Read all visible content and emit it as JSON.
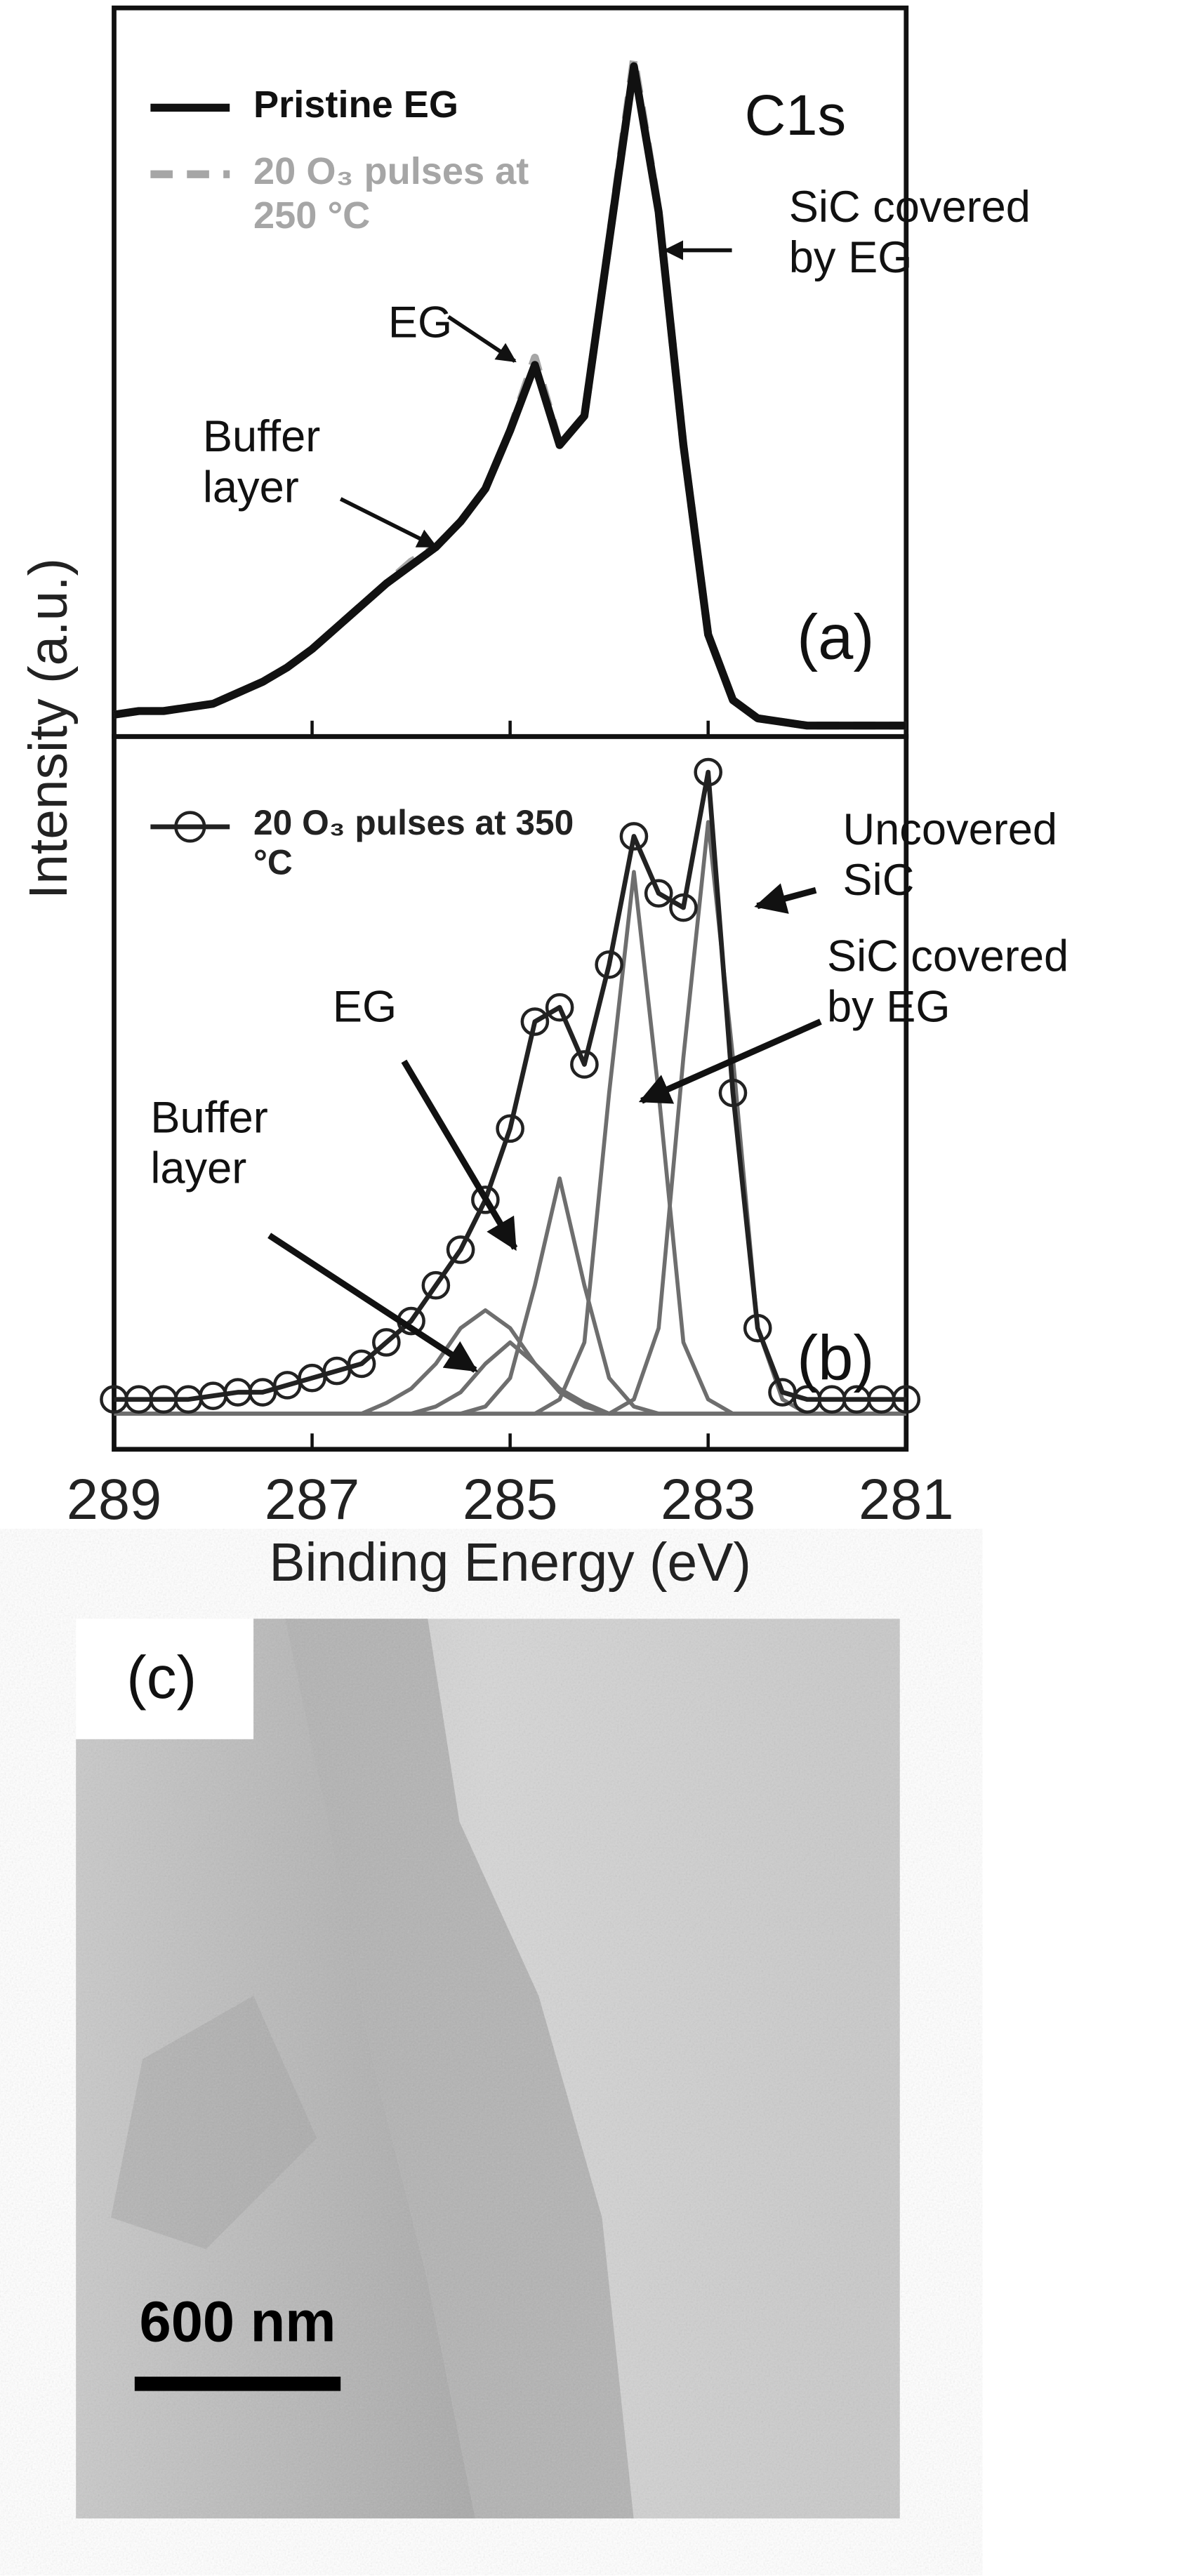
{
  "chart_data": [
    {
      "type": "line",
      "ylabel": "Intensity (a.u.)",
      "xlim": [
        289,
        281
      ],
      "ylim": [
        0,
        100
      ],
      "xticks": [
        289,
        287,
        285,
        283,
        281
      ],
      "xtick_labels": false,
      "x": [
        289,
        288.75,
        288.5,
        288.25,
        288,
        287.75,
        287.5,
        287.25,
        287,
        286.75,
        286.5,
        286.25,
        286,
        285.75,
        285.5,
        285.25,
        285,
        284.75,
        284.5,
        284.25,
        284,
        283.75,
        283.5,
        283.25,
        283,
        282.75,
        282.5,
        282.25,
        282,
        281.75,
        281.5,
        281.25,
        281
      ],
      "series": [
        {
          "name": "Pristine EG",
          "color": "#111111",
          "line": "solid",
          "values": [
            3,
            3.5,
            3.5,
            4,
            4.5,
            6,
            7.5,
            9.5,
            12,
            15,
            18,
            21,
            23.5,
            26,
            29.5,
            34,
            42,
            51,
            40,
            44,
            68,
            92,
            72,
            40,
            14,
            5,
            2.5,
            2,
            1.5,
            1.5,
            1.5,
            1.5,
            1.5
          ]
        },
        {
          "name": "20 O₃ pulses at 250 °C",
          "color": "#a6a6a6",
          "line": "dashed",
          "values": [
            3,
            3.5,
            3.5,
            4,
            4.5,
            6,
            7.5,
            9.5,
            12,
            15,
            18,
            21,
            24,
            26,
            29.5,
            34,
            42,
            52,
            40,
            44,
            68,
            93,
            72,
            40,
            14,
            5,
            2.5,
            2,
            1.5,
            1.5,
            1.5,
            1.5,
            1.5
          ]
        }
      ],
      "annotations": [
        "C1s",
        "SiC covered by EG",
        "EG",
        "Buffer layer",
        "(a)"
      ]
    },
    {
      "type": "line",
      "xlabel": "Binding Energy (eV)",
      "xlim": [
        289,
        281
      ],
      "ylim": [
        0,
        100
      ],
      "xticks": [
        289,
        287,
        285,
        283,
        281
      ],
      "xtick_labels": true,
      "x": [
        289,
        288.75,
        288.5,
        288.25,
        288,
        287.75,
        287.5,
        287.25,
        287,
        286.75,
        286.5,
        286.25,
        286,
        285.75,
        285.5,
        285.25,
        285,
        284.75,
        284.5,
        284.25,
        284,
        283.75,
        283.5,
        283.25,
        283,
        282.75,
        282.5,
        282.25,
        282,
        281.75,
        281.5,
        281.25,
        281
      ],
      "series": [
        {
          "name": "20 O₃ pulses at 350 °C",
          "color": "#222222",
          "line": "solid",
          "marker": "circle",
          "values": [
            7,
            7,
            7,
            7,
            7.5,
            8,
            8,
            9,
            10,
            11,
            12,
            15,
            18,
            23,
            28,
            35,
            45,
            60,
            62,
            54,
            68,
            86,
            78,
            76,
            95,
            50,
            17,
            8,
            7,
            7,
            7,
            7,
            7
          ]
        },
        {
          "color": "#6e6e6e",
          "line": "solid",
          "values": [
            5,
            5,
            5,
            5,
            5,
            5,
            5,
            5,
            5,
            5,
            5,
            5,
            5,
            5,
            5,
            5,
            5,
            5,
            5,
            5,
            5,
            7,
            17,
            55,
            88,
            55,
            17,
            7,
            5,
            5,
            5,
            5,
            5
          ]
        },
        {
          "color": "#6e6e6e",
          "line": "solid",
          "values": [
            5,
            5,
            5,
            5,
            5,
            5,
            5,
            5,
            5,
            5,
            5,
            5,
            5,
            5,
            5,
            5,
            5,
            5,
            7,
            15,
            50,
            81,
            50,
            15,
            7,
            5,
            5,
            5,
            5,
            5,
            5,
            5,
            5
          ]
        },
        {
          "color": "#6e6e6e",
          "line": "solid",
          "values": [
            5,
            5,
            5,
            5,
            5,
            5,
            5,
            5,
            5,
            5,
            5,
            5,
            5,
            5,
            5,
            6,
            10,
            23,
            38,
            23,
            10,
            6,
            5,
            5,
            5,
            5,
            5,
            5,
            5,
            5,
            5,
            5,
            5
          ]
        },
        {
          "color": "#6e6e6e",
          "line": "solid",
          "values": [
            5,
            5,
            5,
            5,
            5,
            5,
            5,
            5,
            5,
            5,
            5,
            6.5,
            8.5,
            12,
            17,
            19.5,
            17,
            12,
            8.5,
            6.5,
            5,
            5,
            5,
            5,
            5,
            5,
            5,
            5,
            5,
            5,
            5,
            5,
            5
          ]
        },
        {
          "color": "#6e6e6e",
          "line": "solid",
          "values": [
            5,
            5,
            5,
            5,
            5,
            5,
            5,
            5,
            5,
            5,
            5,
            5,
            5,
            6,
            8,
            12,
            15,
            12,
            8,
            6,
            5,
            5,
            5,
            5,
            5,
            5,
            5,
            5,
            5,
            5,
            5,
            5,
            5
          ]
        }
      ],
      "annotations": [
        "Uncovered SiC",
        "SiC covered by EG",
        "EG",
        "Buffer layer",
        "(b)"
      ]
    }
  ],
  "image_panel": {
    "label": "(c)",
    "scale_bar": "600 nm"
  }
}
